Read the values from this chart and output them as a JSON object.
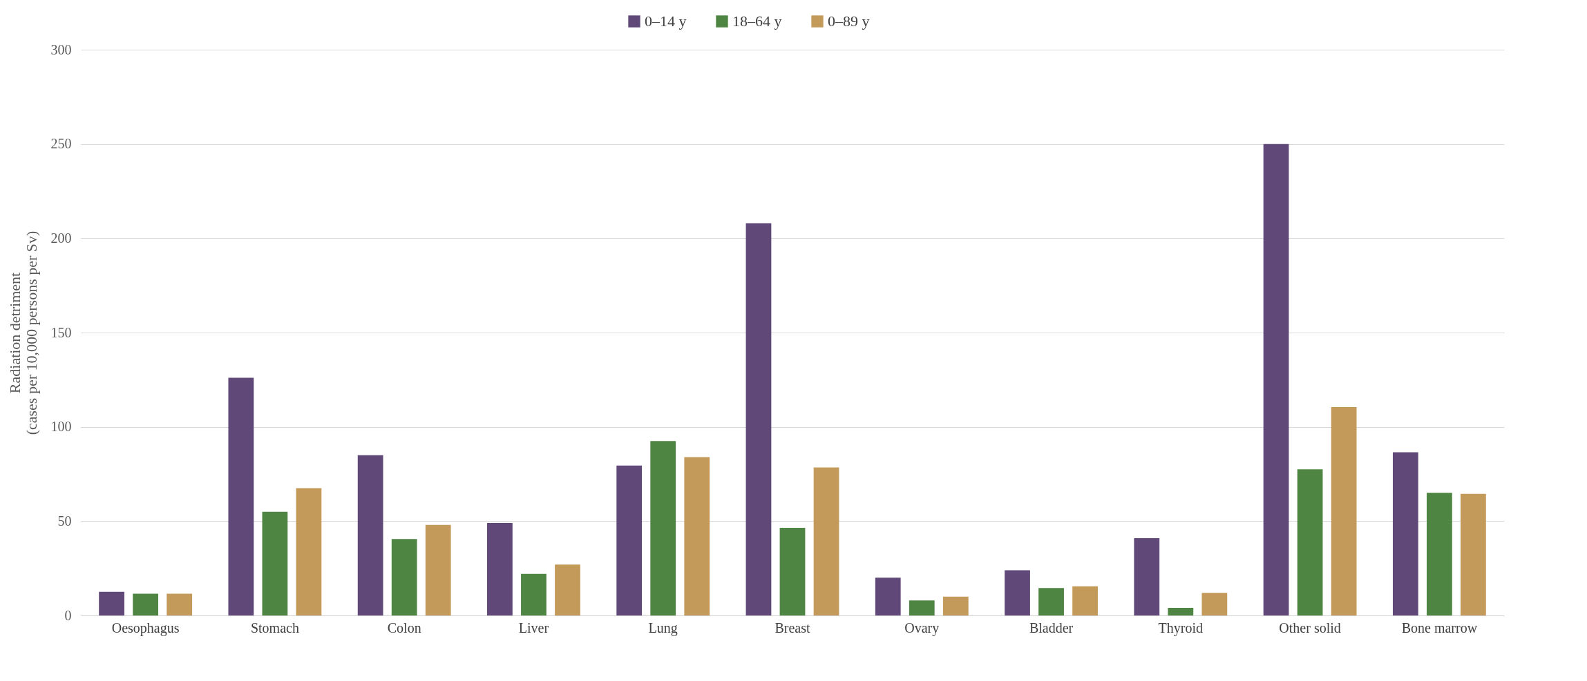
{
  "chart_data": {
    "type": "bar",
    "ylabel": "Radiation detriment\n(cases per 10,000 persons per Sv)",
    "categories": [
      "Oesophagus",
      "Stomach",
      "Colon",
      "Liver",
      "Lung",
      "Breast",
      "Ovary",
      "Bladder",
      "Thyroid",
      "Other solid",
      "Bone marrow"
    ],
    "series": [
      {
        "name": "0–14 y",
        "color": "#604878",
        "values": [
          12.5,
          126,
          85,
          49,
          79.5,
          208,
          20,
          24,
          41,
          250,
          86.5
        ]
      },
      {
        "name": "18–64 y",
        "color": "#4e8542",
        "values": [
          11.5,
          55,
          40.5,
          22,
          92.5,
          46.5,
          8,
          14.5,
          4,
          77.5,
          65
        ]
      },
      {
        "name": "0–89 y",
        "color": "#c49a5a",
        "values": [
          11.5,
          67.5,
          48,
          27,
          84,
          78.5,
          10,
          15.5,
          12,
          110.5,
          64.5
        ]
      }
    ],
    "ylim": [
      0,
      300
    ],
    "yticks": [
      0,
      50,
      100,
      150,
      200,
      250,
      300
    ],
    "grid": "y",
    "legend": "top"
  }
}
